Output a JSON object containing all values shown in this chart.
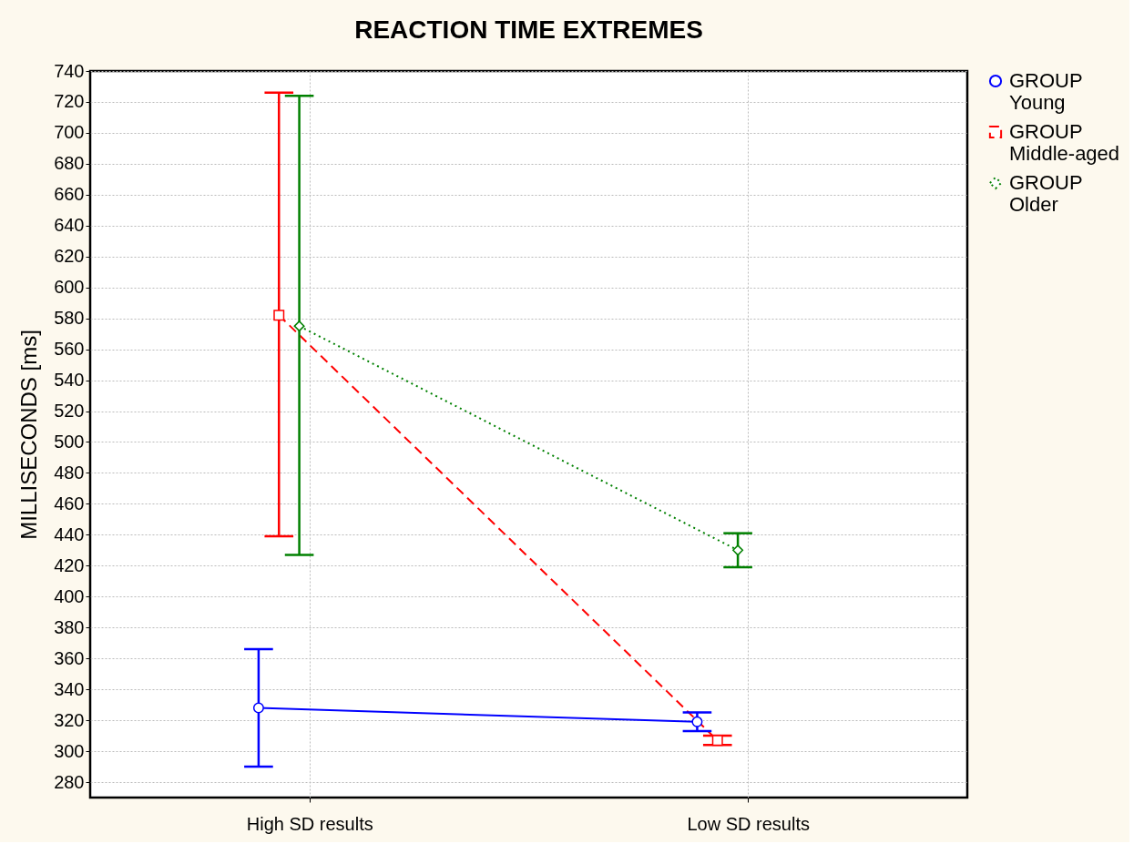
{
  "chart_data": {
    "type": "line",
    "title": "REACTION TIME EXTREMES",
    "ylabel": "MILLISECONDS [ms]",
    "categories": [
      "High SD results",
      "Low SD results"
    ],
    "series": [
      {
        "name": "GROUP Young",
        "color": "#0000ff",
        "values": [
          328,
          319
        ],
        "errors": [
          [
            290,
            366
          ],
          [
            313,
            325
          ]
        ],
        "marker": "circle",
        "line_style": "solid"
      },
      {
        "name": "GROUP Middle-aged",
        "color": "#ff0000",
        "values": [
          582,
          307
        ],
        "errors": [
          [
            439,
            726
          ],
          [
            304,
            310
          ]
        ],
        "marker": "square",
        "line_style": "dashed"
      },
      {
        "name": "GROUP Older",
        "color": "#008000",
        "values": [
          575,
          430
        ],
        "errors": [
          [
            427,
            724
          ],
          [
            419,
            441
          ]
        ],
        "marker": "diamond",
        "line_style": "dotted"
      }
    ],
    "ylim": [
      270,
      740
    ],
    "yticks": [
      280,
      300,
      320,
      340,
      360,
      380,
      400,
      420,
      440,
      460,
      480,
      500,
      520,
      540,
      560,
      580,
      600,
      620,
      640,
      660,
      680,
      700,
      720,
      740
    ],
    "grid": true,
    "legend": "right"
  }
}
